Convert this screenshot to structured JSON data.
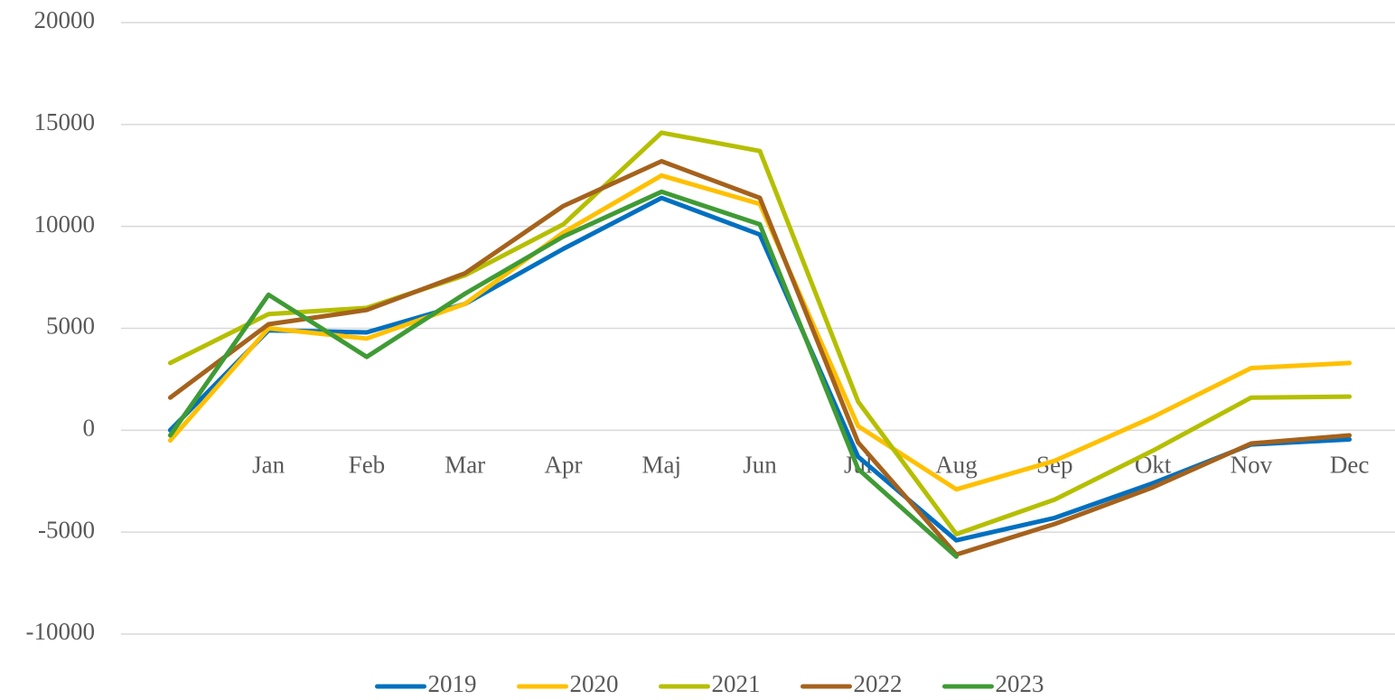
{
  "chart_data": {
    "type": "line",
    "categories": [
      null,
      "Jan",
      "Feb",
      "Mar",
      "Apr",
      "Maj",
      "Jun",
      "Jul",
      "Aug",
      "Sep",
      "Okt",
      "Nov",
      "Dec"
    ],
    "series": [
      {
        "name": "2019",
        "color": "#0070c0",
        "values": [
          0,
          4900,
          4800,
          6200,
          8900,
          11400,
          9600,
          -1300,
          -5400,
          -4300,
          -2600,
          -700,
          -450
        ]
      },
      {
        "name": "2020",
        "color": "#ffc000",
        "values": [
          -500,
          5000,
          4500,
          6200,
          9700,
          12500,
          11100,
          200,
          -2900,
          -1500,
          650,
          3050,
          3300
        ]
      },
      {
        "name": "2021",
        "color": "#b5bf00",
        "values": [
          3300,
          5700,
          6000,
          7600,
          10100,
          14600,
          13700,
          1400,
          -5100,
          -3400,
          -1000,
          1600,
          1650
        ]
      },
      {
        "name": "2022",
        "color": "#a5621c",
        "values": [
          1600,
          5200,
          5900,
          7700,
          11000,
          13200,
          11400,
          -600,
          -6100,
          -4600,
          -2800,
          -650,
          -250
        ]
      },
      {
        "name": "2023",
        "color": "#3f9b35",
        "values": [
          -250,
          6650,
          3600,
          6700,
          9500,
          11700,
          10100,
          -1900,
          -6200,
          null,
          null,
          null,
          null
        ]
      }
    ],
    "ylim": [
      -10000,
      20000
    ],
    "yticks": [
      -10000,
      -5000,
      0,
      5000,
      10000,
      15000,
      20000
    ],
    "grid": true,
    "legend": "bottom"
  }
}
